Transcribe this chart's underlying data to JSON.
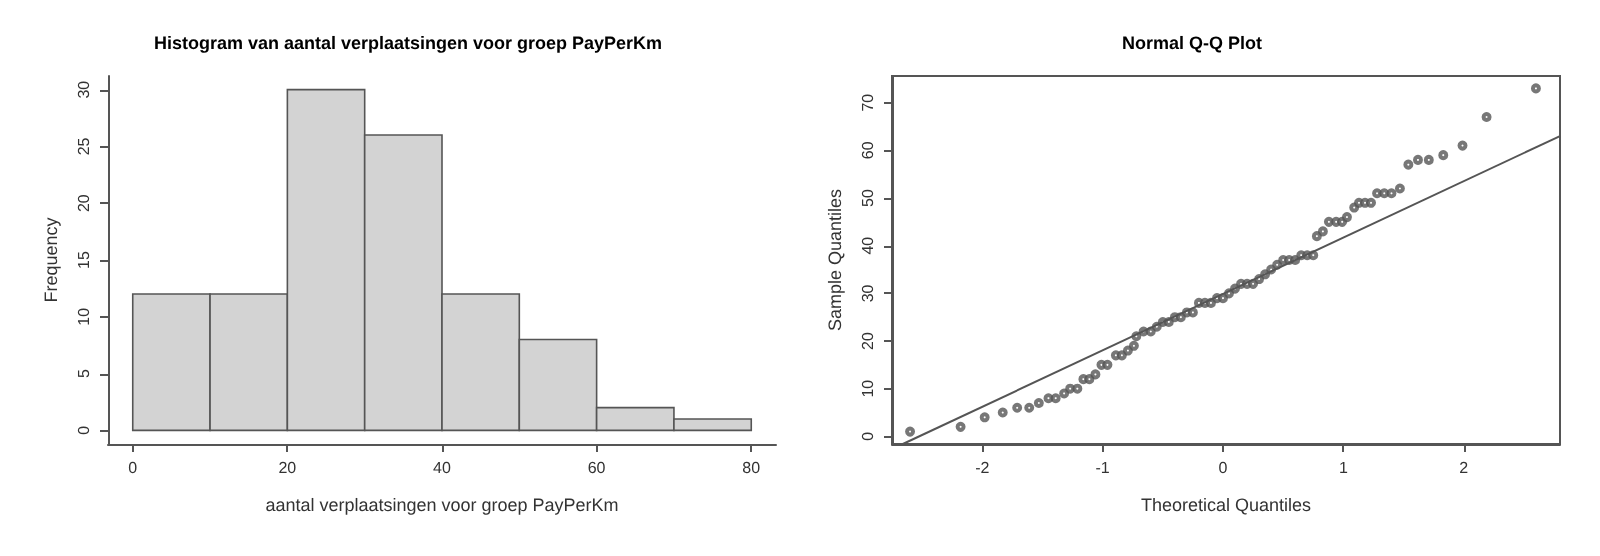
{
  "chart_data": [
    {
      "type": "histogram",
      "title": "Histogram van aantal verplaatsingen voor groep PayPerKm",
      "xlabel": "aantal verplaatsingen voor groep PayPerKm",
      "ylabel": "Frequency",
      "bins": [
        0,
        10,
        20,
        30,
        40,
        50,
        60,
        70,
        80
      ],
      "values": [
        12,
        12,
        30,
        26,
        12,
        8,
        2,
        1
      ],
      "color": "#d3d3d3",
      "xlim": [
        -3.2,
        83.2
      ],
      "ylim": [
        -1.2,
        31.2
      ],
      "xticks": [
        0,
        20,
        40,
        60,
        80
      ],
      "yticks": [
        0,
        5,
        10,
        15,
        20,
        25,
        30
      ],
      "grid": false
    },
    {
      "type": "scatter",
      "title": "Normal Q-Q Plot",
      "xlabel": "Theoretical Quantiles",
      "ylabel": "Sample Quantiles",
      "xlim": [
        -2.75,
        2.8
      ],
      "ylim": [
        -1.6,
        75.6
      ],
      "xticks": [
        -2,
        -1,
        0,
        1,
        2
      ],
      "yticks": [
        0,
        10,
        20,
        30,
        40,
        50,
        60,
        70
      ],
      "grid": false,
      "series": [
        {
          "type": "scatter",
          "color": "#555555",
          "marker": "circle",
          "x": [
            -2.6,
            -2.18,
            -1.98,
            -1.83,
            -1.71,
            -1.61,
            -1.53,
            -1.45,
            -1.39,
            -1.32,
            -1.27,
            -1.21,
            -1.16,
            -1.11,
            -1.06,
            -1.01,
            -0.96,
            -0.89,
            -0.84,
            -0.79,
            -0.74,
            -0.72,
            -0.66,
            -0.6,
            -0.55,
            -0.5,
            -0.45,
            -0.4,
            -0.35,
            -0.3,
            -0.25,
            -0.2,
            -0.15,
            -0.1,
            -0.05,
            0,
            0.05,
            0.1,
            0.15,
            0.2,
            0.25,
            0.3,
            0.35,
            0.4,
            0.45,
            0.5,
            0.55,
            0.6,
            0.65,
            0.7,
            0.75,
            0.78,
            0.83,
            0.88,
            0.94,
            0.99,
            1.03,
            1.09,
            1.13,
            1.18,
            1.23,
            1.28,
            1.34,
            1.4,
            1.47,
            1.54,
            1.62,
            1.71,
            1.83,
            1.99,
            2.19,
            2.6
          ],
          "values": [
            1,
            2,
            4,
            5,
            6,
            6,
            7,
            8,
            8,
            9,
            10,
            10,
            12,
            12,
            13,
            15,
            15,
            17,
            17,
            18,
            19,
            21,
            22,
            22,
            23,
            24,
            24,
            25,
            25,
            26,
            26,
            28,
            28,
            28,
            29,
            29,
            30,
            31,
            32,
            32,
            32,
            33,
            34,
            35,
            36,
            37,
            37,
            37,
            38,
            38,
            38,
            42,
            43,
            45,
            45,
            45,
            46,
            48,
            49,
            49,
            49,
            51,
            51,
            51,
            52,
            57,
            58,
            58,
            59,
            61,
            67,
            73
          ]
        },
        {
          "type": "line",
          "color": "#555555",
          "x": [
            -2.66,
            2.8
          ],
          "values": [
            -1.6,
            63
          ]
        }
      ]
    }
  ]
}
